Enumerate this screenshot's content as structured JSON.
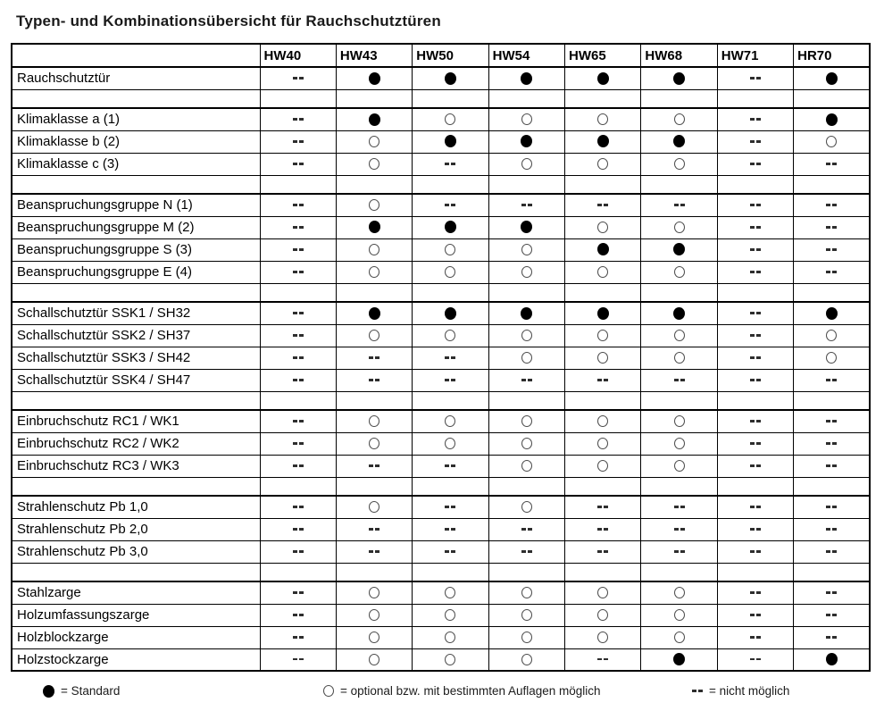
{
  "page": {
    "title": "Typen- und Kombinationsübersicht für Rauchschutztüren"
  },
  "colors": {
    "text": "#000000",
    "border": "#000000",
    "background": "#ffffff"
  },
  "table": {
    "columns": [
      "HW40",
      "HW43",
      "HW50",
      "HW54",
      "HW65",
      "HW68",
      "HW71",
      "HR70"
    ],
    "symbols": {
      "standard": "●",
      "optional": "○",
      "none": "--"
    },
    "rows": [
      {
        "label": "Rauchschutztür",
        "values": [
          "none",
          "standard",
          "standard",
          "standard",
          "standard",
          "standard",
          "none",
          "standard"
        ]
      },
      {
        "spacer": true
      },
      {
        "label": "Klimaklasse a (1)",
        "values": [
          "none",
          "standard",
          "optional",
          "optional",
          "optional",
          "optional",
          "none",
          "standard"
        ]
      },
      {
        "label": "Klimaklasse b (2)",
        "values": [
          "none",
          "optional",
          "standard",
          "standard",
          "standard",
          "standard",
          "none",
          "optional"
        ]
      },
      {
        "label": "Klimaklasse c (3)",
        "values": [
          "none",
          "optional",
          "none",
          "optional",
          "optional",
          "optional",
          "none",
          "none"
        ]
      },
      {
        "spacer": true
      },
      {
        "label": "Beanspruchungsgruppe N (1)",
        "values": [
          "none",
          "optional",
          "none",
          "none",
          "none",
          "none",
          "none",
          "none"
        ]
      },
      {
        "label": "Beanspruchungsgruppe M (2)",
        "values": [
          "none",
          "standard",
          "standard",
          "standard",
          "optional",
          "optional",
          "none",
          "none"
        ]
      },
      {
        "label": "Beanspruchungsgruppe S (3)",
        "values": [
          "none",
          "optional",
          "optional",
          "optional",
          "standard",
          "standard",
          "none",
          "none"
        ]
      },
      {
        "label": "Beanspruchungsgruppe E (4)",
        "values": [
          "none",
          "optional",
          "optional",
          "optional",
          "optional",
          "optional",
          "none",
          "none"
        ]
      },
      {
        "spacer": true
      },
      {
        "label": "Schallschutztür SSK1 / SH32",
        "values": [
          "none",
          "standard",
          "standard",
          "standard",
          "standard",
          "standard",
          "none",
          "standard"
        ]
      },
      {
        "label": "Schallschutztür SSK2 / SH37",
        "values": [
          "none",
          "optional",
          "optional",
          "optional",
          "optional",
          "optional",
          "none",
          "optional"
        ]
      },
      {
        "label": "Schallschutztür SSK3 / SH42",
        "values": [
          "none",
          "none",
          "none",
          "optional",
          "optional",
          "optional",
          "none",
          "optional"
        ]
      },
      {
        "label": "Schallschutztür SSK4 / SH47",
        "values": [
          "none",
          "none",
          "none",
          "none",
          "none",
          "none",
          "none",
          "none"
        ]
      },
      {
        "spacer": true
      },
      {
        "label": "Einbruchschutz RC1 / WK1",
        "values": [
          "none",
          "optional",
          "optional",
          "optional",
          "optional",
          "optional",
          "none",
          "none"
        ]
      },
      {
        "label": "Einbruchschutz RC2 / WK2",
        "values": [
          "none",
          "optional",
          "optional",
          "optional",
          "optional",
          "optional",
          "none",
          "none"
        ]
      },
      {
        "label": "Einbruchschutz RC3 / WK3",
        "values": [
          "none",
          "none",
          "none",
          "optional",
          "optional",
          "optional",
          "none",
          "none"
        ]
      },
      {
        "spacer": true
      },
      {
        "label": "Strahlenschutz Pb 1,0",
        "values": [
          "none",
          "optional",
          "none",
          "optional",
          "none",
          "none",
          "none",
          "none"
        ]
      },
      {
        "label": "Strahlenschutz Pb 2,0",
        "values": [
          "none",
          "none",
          "none",
          "none",
          "none",
          "none",
          "none",
          "none"
        ]
      },
      {
        "label": "Strahlenschutz Pb 3,0",
        "values": [
          "none",
          "none",
          "none",
          "none",
          "none",
          "none",
          "none",
          "none"
        ]
      },
      {
        "spacer": true
      },
      {
        "label": "Stahlzarge",
        "values": [
          "none",
          "optional",
          "optional",
          "optional",
          "optional",
          "optional",
          "none",
          "none"
        ]
      },
      {
        "label": "Holzumfassungszarge",
        "values": [
          "none",
          "optional",
          "optional",
          "optional",
          "optional",
          "optional",
          "none",
          "none"
        ]
      },
      {
        "label": "Holzblockzarge",
        "values": [
          "none",
          "optional",
          "optional",
          "optional",
          "optional",
          "optional",
          "none",
          "none"
        ]
      },
      {
        "label": "Holzstockzarge",
        "values": [
          "none",
          "optional",
          "optional",
          "optional",
          "none",
          "standard",
          "none",
          "standard"
        ]
      }
    ]
  },
  "legend": {
    "items": [
      {
        "symbol": "standard",
        "text": "= Standard"
      },
      {
        "symbol": "optional",
        "text": "= optional bzw. mit bestimmten Auflagen möglich"
      },
      {
        "symbol": "none",
        "text": "= nicht möglich"
      }
    ]
  }
}
